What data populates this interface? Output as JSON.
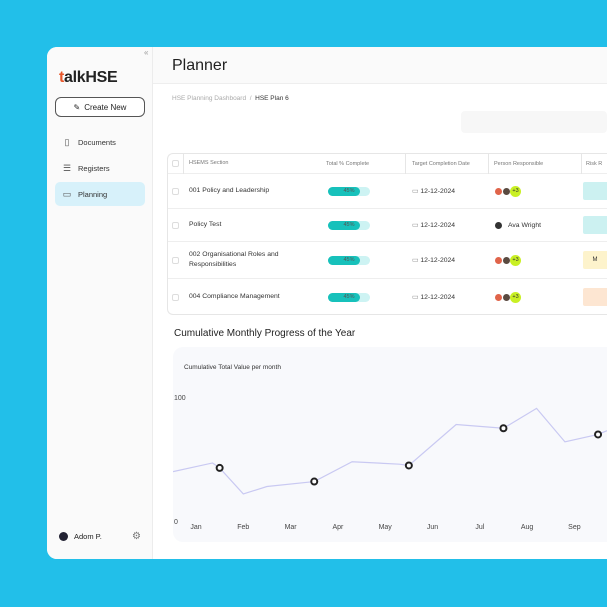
{
  "sidebar": {
    "logo": "talkHSE",
    "collapse_icon": "double-chevron-left",
    "create_label": "Create New",
    "items": [
      {
        "label": "Documents",
        "icon": "document-icon"
      },
      {
        "label": "Registers",
        "icon": "list-icon"
      },
      {
        "label": "Planning",
        "icon": "calendar-icon",
        "active": true
      }
    ],
    "user": "Adom P."
  },
  "header": {
    "title": "Planner"
  },
  "breadcrumb": {
    "parent": "HSE Planning Dashboard",
    "sep": "/",
    "current": "HSE Plan 6"
  },
  "table": {
    "columns": [
      "HSEMS Section",
      "Total % Complete",
      "Target Completion Date",
      "Person Responsible",
      "Risk R"
    ],
    "rows": [
      {
        "section": "001 Policy and Leadership",
        "progress": 45,
        "progress_label": "45%",
        "date": "12-12-2024",
        "person": "",
        "extra": "+3",
        "risk": "",
        "risk_color": "#ccf1f1"
      },
      {
        "section": "Policy Test",
        "progress": 45,
        "progress_label": "45%",
        "date": "12-12-2024",
        "person": "Ava Wright",
        "extra": "",
        "risk": "",
        "risk_color": "#ccf1f1"
      },
      {
        "section": "002 Organisational Roles and Responsibilities",
        "progress": 45,
        "progress_label": "45%",
        "date": "12-12-2024",
        "person": "",
        "extra": "+3",
        "risk": "M",
        "risk_color": "#fdf3cc"
      },
      {
        "section": "004 Compliance Management",
        "progress": 45,
        "progress_label": "45%",
        "date": "12-12-2024",
        "person": "",
        "extra": "+3",
        "risk": "",
        "risk_color": "#fde6d2"
      }
    ]
  },
  "chart_section": {
    "title": "Cumulative Monthly Progress of the Year"
  },
  "chart_data": {
    "type": "line",
    "subtitle": "Cumulative Total Value per month",
    "categories": [
      "Jan",
      "Feb",
      "Mar",
      "Apr",
      "May",
      "Jun",
      "Jul",
      "Aug",
      "Sep"
    ],
    "yticks": [
      "100",
      "0"
    ],
    "ylim": [
      0,
      100
    ],
    "grid": false,
    "line": {
      "x": [
        -0.5,
        0.35,
        0.5,
        1,
        1.5,
        2.5,
        3.3,
        4.3,
        4.5,
        5.5,
        6.5,
        7.2,
        7.8,
        8.5,
        8.7
      ],
      "y": [
        39,
        46,
        42,
        21,
        27,
        31,
        47,
        45,
        44,
        77,
        74,
        90,
        63,
        69,
        72
      ]
    },
    "markers": {
      "x": [
        0.5,
        2.5,
        4.5,
        6.5,
        8.5
      ],
      "y": [
        42,
        31,
        44,
        74,
        69
      ]
    },
    "line_color": "#c9c9f2"
  }
}
